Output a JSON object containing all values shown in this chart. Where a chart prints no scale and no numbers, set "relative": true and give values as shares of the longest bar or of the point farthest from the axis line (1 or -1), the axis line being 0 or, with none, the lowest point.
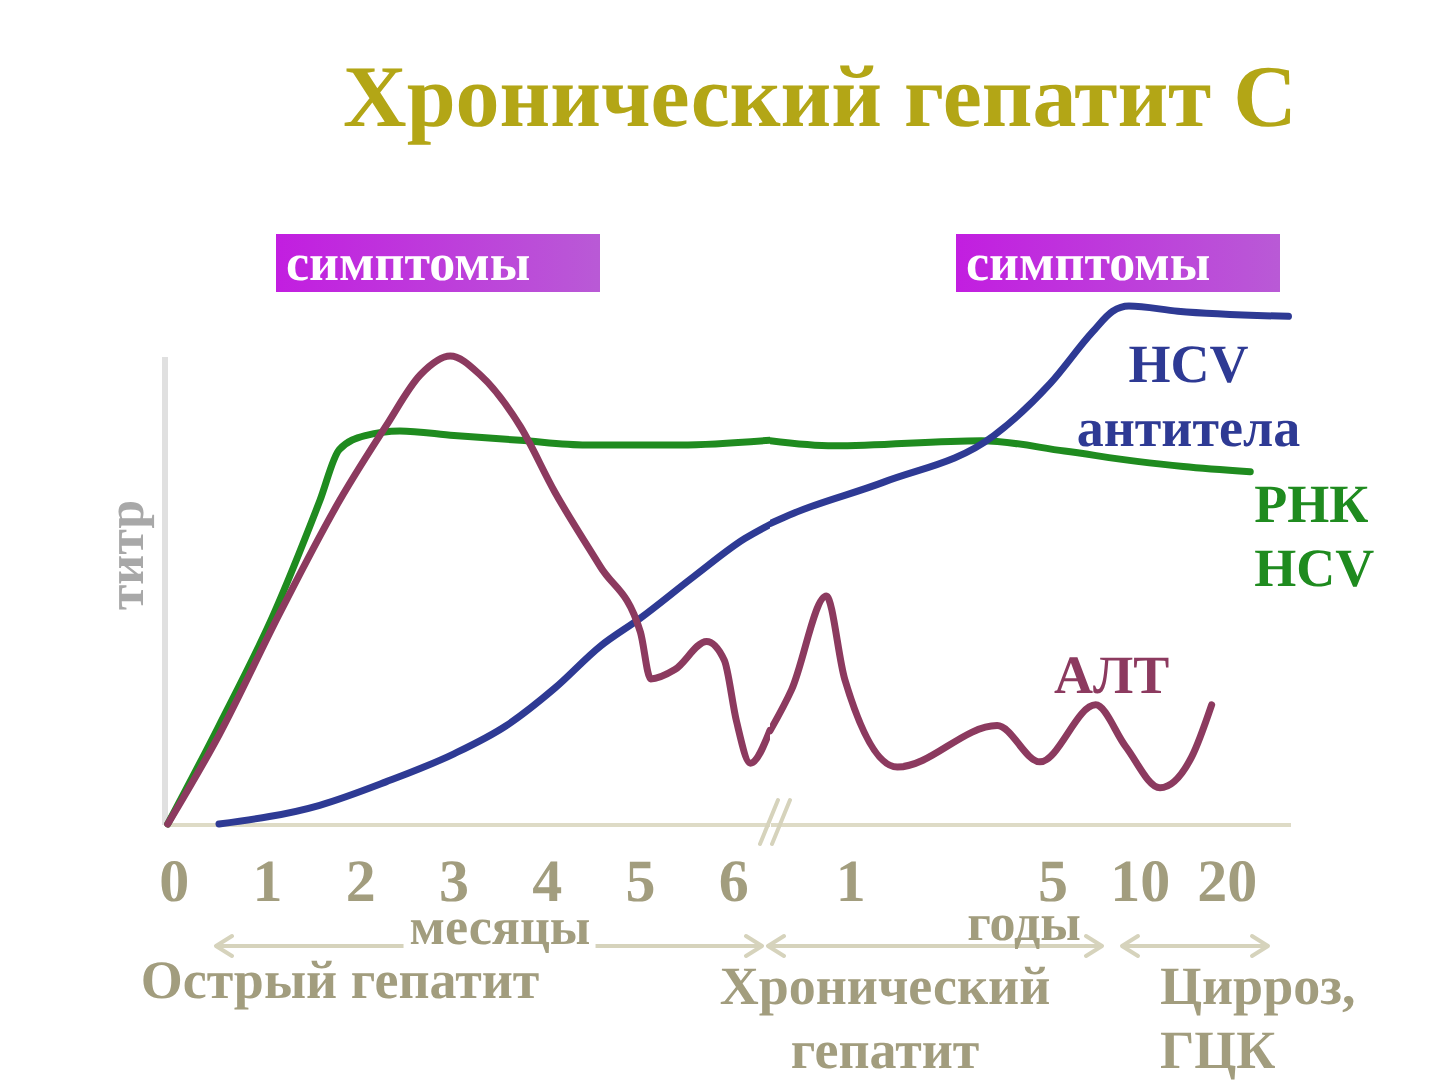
{
  "chart_data": [
    {
      "type": "line",
      "title": "Хронический гепатит С",
      "ylabel": "титр",
      "relative": true,
      "xlim": [
        -0.1,
        6.4
      ],
      "xticks": [
        0,
        1,
        2,
        3,
        4,
        5,
        6
      ],
      "series": [
        {
          "color": "#1f8b1f",
          "x": [
            -0.06,
            0.49,
            1.08,
            1.57,
            1.78,
            2.06,
            2.43,
            3.01,
            3.72,
            4.43,
            5.44,
            6.4
          ],
          "values": [
            0,
            0.21,
            0.45,
            0.69,
            0.8,
            0.83,
            0.84,
            0.83,
            0.82,
            0.81,
            0.81,
            0.82
          ]
        },
        {
          "color": "#2e3a94",
          "x": [
            0.49,
            1.57,
            2.28,
            3.01,
            3.57,
            4.09,
            4.58,
            5.01,
            5.59,
            6.13,
            6.4
          ],
          "values": [
            0,
            0.04,
            0.09,
            0.15,
            0.21,
            0.29,
            0.38,
            0.44,
            0.53,
            0.61,
            0.64
          ]
        },
        {
          "color": "#8c3a5f",
          "x": [
            -0.06,
            0.49,
            1.14,
            1.78,
            2.28,
            2.65,
            2.97,
            3.29,
            3.72,
            4.09,
            4.58,
            5.01,
            5.12,
            5.38,
            5.72,
            5.91,
            6.04,
            6.19,
            6.4
          ],
          "values": [
            0,
            0.19,
            0.45,
            0.69,
            0.85,
            0.96,
            1,
            0.96,
            0.85,
            0.71,
            0.55,
            0.41,
            0.31,
            0.33,
            0.39,
            0.35,
            0.22,
            0.13,
            0.2
          ]
        }
      ],
      "annotations": [
        "симптомы",
        "месяцы",
        "Острый гепатит"
      ]
    },
    {
      "type": "line",
      "relative": true,
      "log": "x",
      "xlim": [
        0.53,
        33.2
      ],
      "xticks": [
        1,
        5,
        10,
        20
      ],
      "series": [
        {
          "name": "РНК HCV",
          "color": "#1f8b1f",
          "x": [
            0.53,
            0.88,
            2.85,
            5.52,
            9.83,
            14.2,
            24.2
          ],
          "values": [
            0.74,
            0.73,
            0.74,
            0.72,
            0.7,
            0.69,
            0.68
          ]
        },
        {
          "name": "HCV антитела",
          "color": "#2e3a94",
          "x": [
            0.53,
            0.64,
            1.31,
            3.15,
            4.92,
            6.9,
            8.1,
            9.22,
            13.6,
            32.8
          ],
          "values": [
            0.58,
            0.6,
            0.66,
            0.75,
            0.85,
            0.95,
            0.99,
            1,
            0.99,
            0.98
          ]
        },
        {
          "name": "АЛТ",
          "color": "#8c3a5f",
          "x": [
            0.53,
            0.63,
            0.83,
            0.96,
            1.46,
            3.23,
            4.54,
            7.07,
            8.97,
            11.8,
            15.2,
            17.8
          ],
          "values": [
            0.18,
            0.26,
            0.44,
            0.28,
            0.11,
            0.19,
            0.12,
            0.23,
            0.15,
            0.07,
            0.13,
            0.23
          ]
        }
      ],
      "annotations": [
        "симптомы",
        "годы",
        "Хронический гепатит",
        "Цирроз, ГЦК"
      ]
    }
  ]
}
